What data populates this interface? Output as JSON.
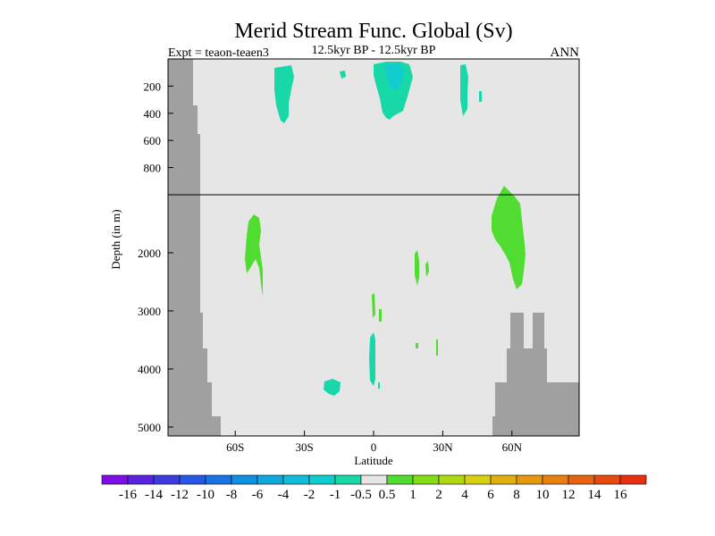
{
  "chart_data": {
    "type": "heatmap",
    "title": "Merid Stream Func. Global (Sv)",
    "subtitle_left": "Expt = teaon-teaen3",
    "subtitle_center": "12.5kyr BP - 12.5kyr BP",
    "subtitle_right": "ANN",
    "xlabel": "Latitude",
    "ylabel": "Depth (in m)",
    "x_ticks": [
      "60S",
      "30S",
      "0",
      "30N",
      "60N"
    ],
    "y_ticks_upper": [
      "200",
      "400",
      "600",
      "800"
    ],
    "y_ticks_lower": [
      "2000",
      "3000",
      "4000",
      "5000"
    ],
    "xlim": [
      -90,
      90
    ],
    "depth_split_m": 1000,
    "colorbar": {
      "labels": [
        "-16",
        "-14",
        "-12",
        "-10",
        "-8",
        "-6",
        "-4",
        "-2",
        "-1",
        "-0.5",
        "0.5",
        "1",
        "2",
        "4",
        "6",
        "8",
        "10",
        "12",
        "14",
        "16"
      ],
      "colors": [
        "#7d0ee6",
        "#5a23e0",
        "#3c3ce0",
        "#2857e6",
        "#1a74e6",
        "#1090e0",
        "#10a8dc",
        "#10bcd8",
        "#10cccc",
        "#18d8a8",
        "#e6e6e6",
        "#50dc30",
        "#84dc18",
        "#b0d810",
        "#d8d010",
        "#e0b010",
        "#e69810",
        "#e68010",
        "#e66410",
        "#e64a10",
        "#e63010"
      ]
    },
    "regions": [
      {
        "value": "-1 to -0.5",
        "color": "#18d8a8",
        "area": "upper ocean ~35S, 100-450 m"
      },
      {
        "value": "-1 to -0.5",
        "color": "#18d8a8",
        "area": "upper ocean ~0-15N, 0-450 m"
      },
      {
        "value": "-1 to -0.5",
        "color": "#18d8a8",
        "area": "deep ~0, 3800-4600 m"
      },
      {
        "value": "-1 to -0.5",
        "color": "#18d8a8",
        "area": "deep ~20S, 4300-4500 m"
      },
      {
        "value": "0.5 to 1",
        "color": "#50dc30",
        "area": "~55S, 1200-2600 m"
      },
      {
        "value": "0.5 to 1",
        "color": "#50dc30",
        "area": "~55-65N, 950-2600 m"
      }
    ],
    "grid": false
  }
}
